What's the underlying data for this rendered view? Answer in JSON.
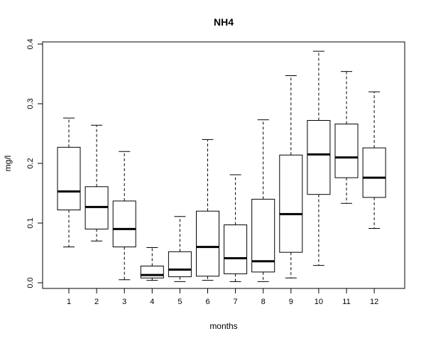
{
  "chart_data": {
    "type": "boxplot",
    "title": "NH4",
    "xlabel": "months",
    "ylabel": "mg/l",
    "ylim": [
      -0.01,
      0.4
    ],
    "yticks": [
      0.0,
      0.1,
      0.2,
      0.3,
      0.4
    ],
    "ytick_labels": [
      "0.0",
      "0.1",
      "0.2",
      "0.3",
      "0.4"
    ],
    "categories": [
      "1",
      "2",
      "3",
      "4",
      "5",
      "6",
      "7",
      "8",
      "9",
      "10",
      "11",
      "12"
    ],
    "boxes": [
      {
        "min": 0.06,
        "q1": 0.122,
        "median": 0.153,
        "q3": 0.227,
        "max": 0.276
      },
      {
        "min": 0.07,
        "q1": 0.09,
        "median": 0.127,
        "q3": 0.161,
        "max": 0.264
      },
      {
        "min": 0.005,
        "q1": 0.06,
        "median": 0.09,
        "q3": 0.137,
        "max": 0.22
      },
      {
        "min": 0.004,
        "q1": 0.008,
        "median": 0.013,
        "q3": 0.028,
        "max": 0.059
      },
      {
        "min": 0.002,
        "q1": 0.01,
        "median": 0.022,
        "q3": 0.052,
        "max": 0.111
      },
      {
        "min": 0.004,
        "q1": 0.011,
        "median": 0.06,
        "q3": 0.12,
        "max": 0.24
      },
      {
        "min": 0.002,
        "q1": 0.015,
        "median": 0.041,
        "q3": 0.097,
        "max": 0.181
      },
      {
        "min": 0.002,
        "q1": 0.018,
        "median": 0.036,
        "q3": 0.14,
        "max": 0.273
      },
      {
        "min": 0.008,
        "q1": 0.051,
        "median": 0.115,
        "q3": 0.214,
        "max": 0.347
      },
      {
        "min": 0.029,
        "q1": 0.148,
        "median": 0.215,
        "q3": 0.272,
        "max": 0.388
      },
      {
        "min": 0.133,
        "q1": 0.176,
        "median": 0.21,
        "q3": 0.266,
        "max": 0.354
      },
      {
        "min": 0.091,
        "q1": 0.143,
        "median": 0.176,
        "q3": 0.226,
        "max": 0.32
      }
    ],
    "grid": false,
    "legend": "none"
  }
}
